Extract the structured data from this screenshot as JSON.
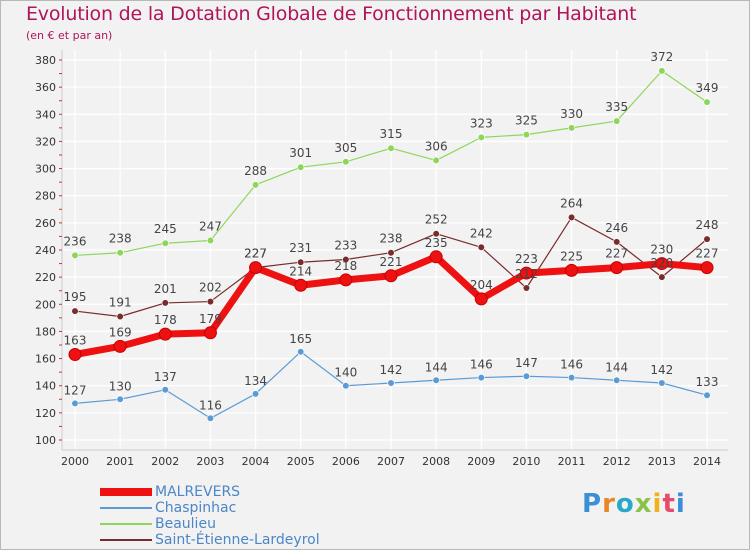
{
  "header": {
    "title": "Evolution de la Dotation Globale de Fonctionnement par Habitant",
    "subtitle": "(en € et par an)"
  },
  "logo": {
    "text": "Proxiti"
  },
  "colors": {
    "title": "#b0145a",
    "axis_labels": "#333333",
    "value_labels": "#444444",
    "grid": "#ffffff"
  },
  "chart_data": {
    "type": "line",
    "title": "Evolution de la Dotation Globale de Fonctionnement par Habitant",
    "subtitle": "(en € et par an)",
    "xlabel": "",
    "ylabel": "",
    "x": [
      "2000",
      "2001",
      "2002",
      "2003",
      "2004",
      "2005",
      "2006",
      "2007",
      "2008",
      "2009",
      "2010",
      "2011",
      "2012",
      "2013",
      "2014"
    ],
    "ylim": [
      100,
      380
    ],
    "yticks": [
      100,
      120,
      140,
      160,
      180,
      200,
      220,
      240,
      260,
      280,
      300,
      320,
      340,
      360,
      380
    ],
    "grid": true,
    "legend_position": "bottom-left",
    "series": [
      {
        "name": "MALREVERS",
        "color": "#ee1111",
        "width": 7,
        "values": [
          163,
          169,
          178,
          179,
          227,
          214,
          218,
          221,
          235,
          204,
          223,
          225,
          227,
          230,
          227
        ]
      },
      {
        "name": "Chaspinhac",
        "color": "#5b9bd5",
        "width": 1.2,
        "values": [
          127,
          130,
          137,
          116,
          134,
          165,
          140,
          142,
          144,
          146,
          147,
          146,
          144,
          142,
          133
        ]
      },
      {
        "name": "Beaulieu",
        "color": "#8ed65a",
        "width": 1.2,
        "values": [
          236,
          238,
          245,
          247,
          288,
          301,
          305,
          315,
          306,
          323,
          325,
          330,
          335,
          372,
          349
        ]
      },
      {
        "name": "Saint-Étienne-Lardeyrol",
        "color": "#7a2b2b",
        "width": 1.2,
        "values": [
          195,
          191,
          201,
          202,
          227,
          231,
          233,
          238,
          252,
          242,
          212,
          264,
          246,
          220,
          248
        ]
      }
    ]
  }
}
